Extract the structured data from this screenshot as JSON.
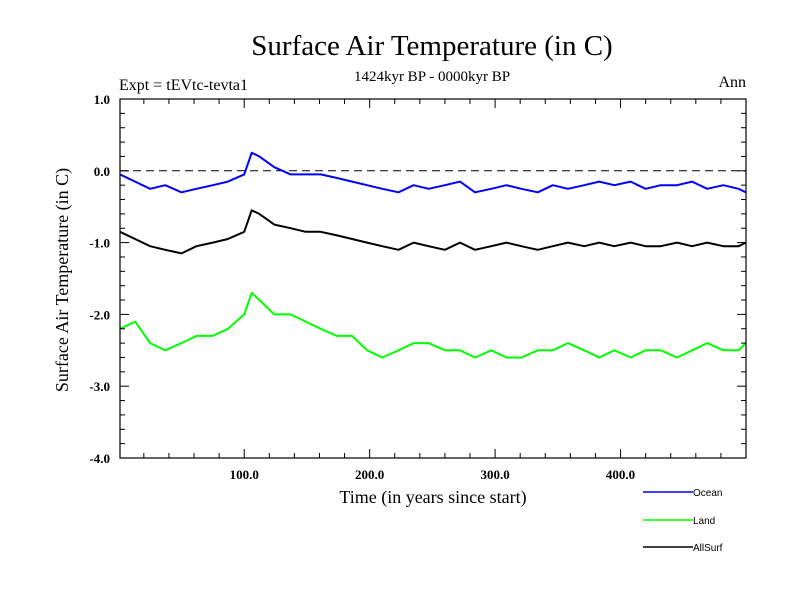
{
  "chart_data": {
    "type": "line",
    "title": "Surface Air Temperature (in C)",
    "subtitle": "1424kyr BP - 0000kyr BP",
    "left_label": "Expt = tEVtc-tevta1",
    "right_label": "Ann",
    "xlabel": "Time (in years since start)",
    "ylabel": "Surface Air Temperature (in C)",
    "xlim": [
      1,
      500
    ],
    "ylim": [
      -4.0,
      1.0
    ],
    "x_ticks": [
      {
        "value": 100,
        "label": "100.0"
      },
      {
        "value": 200,
        "label": "200.0"
      },
      {
        "value": 300,
        "label": "300.0"
      },
      {
        "value": 400,
        "label": "400.0"
      }
    ],
    "y_ticks": [
      {
        "value": 1.0,
        "label": "1.0"
      },
      {
        "value": 0.0,
        "label": "0.0"
      },
      {
        "value": -1.0,
        "label": "-1.0"
      },
      {
        "value": -2.0,
        "label": "-2.0"
      },
      {
        "value": -3.0,
        "label": "-3.0"
      },
      {
        "value": -4.0,
        "label": "-4.0"
      }
    ],
    "zero_line": 0.0,
    "series": [
      {
        "name": "Ocean",
        "color": "#0000ff",
        "x": [
          1,
          13,
          25,
          37,
          50,
          62,
          75,
          87,
          100,
          106,
          112,
          124,
          137,
          149,
          161,
          174,
          186,
          198,
          210,
          223,
          235,
          247,
          260,
          272,
          284,
          297,
          309,
          321,
          334,
          346,
          358,
          371,
          383,
          395,
          408,
          420,
          432,
          445,
          457,
          469,
          482,
          494,
          500
        ],
        "values": [
          -0.05,
          -0.15,
          -0.25,
          -0.2,
          -0.3,
          -0.25,
          -0.2,
          -0.15,
          -0.05,
          0.25,
          0.2,
          0.05,
          -0.05,
          -0.05,
          -0.05,
          -0.1,
          -0.15,
          -0.2,
          -0.25,
          -0.3,
          -0.2,
          -0.25,
          -0.2,
          -0.15,
          -0.3,
          -0.25,
          -0.2,
          -0.25,
          -0.3,
          -0.2,
          -0.25,
          -0.2,
          -0.15,
          -0.2,
          -0.15,
          -0.25,
          -0.2,
          -0.2,
          -0.15,
          -0.25,
          -0.2,
          -0.25,
          -0.3
        ]
      },
      {
        "name": "Land",
        "color": "#00ff00",
        "x": [
          1,
          13,
          25,
          37,
          50,
          62,
          75,
          87,
          100,
          106,
          112,
          124,
          137,
          149,
          161,
          174,
          186,
          198,
          210,
          223,
          235,
          247,
          260,
          272,
          284,
          297,
          309,
          321,
          334,
          346,
          358,
          371,
          383,
          395,
          408,
          420,
          432,
          445,
          457,
          469,
          482,
          494,
          500
        ],
        "values": [
          -2.2,
          -2.1,
          -2.4,
          -2.5,
          -2.4,
          -2.3,
          -2.3,
          -2.2,
          -2.0,
          -1.7,
          -1.8,
          -2.0,
          -2.0,
          -2.1,
          -2.2,
          -2.3,
          -2.3,
          -2.5,
          -2.6,
          -2.5,
          -2.4,
          -2.4,
          -2.5,
          -2.5,
          -2.6,
          -2.5,
          -2.6,
          -2.6,
          -2.5,
          -2.5,
          -2.4,
          -2.5,
          -2.6,
          -2.5,
          -2.6,
          -2.5,
          -2.5,
          -2.6,
          -2.5,
          -2.4,
          -2.5,
          -2.5,
          -2.4
        ]
      },
      {
        "name": "AllSurf",
        "color": "#000000",
        "x": [
          1,
          13,
          25,
          37,
          50,
          62,
          75,
          87,
          100,
          106,
          112,
          124,
          137,
          149,
          161,
          174,
          186,
          198,
          210,
          223,
          235,
          247,
          260,
          272,
          284,
          297,
          309,
          321,
          334,
          346,
          358,
          371,
          383,
          395,
          408,
          420,
          432,
          445,
          457,
          469,
          482,
          494,
          500
        ],
        "values": [
          -0.85,
          -0.95,
          -1.05,
          -1.1,
          -1.15,
          -1.05,
          -1.0,
          -0.95,
          -0.85,
          -0.55,
          -0.6,
          -0.75,
          -0.8,
          -0.85,
          -0.85,
          -0.9,
          -0.95,
          -1.0,
          -1.05,
          -1.1,
          -1.0,
          -1.05,
          -1.1,
          -1.0,
          -1.1,
          -1.05,
          -1.0,
          -1.05,
          -1.1,
          -1.05,
          -1.0,
          -1.05,
          -1.0,
          -1.05,
          -1.0,
          -1.05,
          -1.05,
          -1.0,
          -1.05,
          -1.0,
          -1.05,
          -1.05,
          -1.0
        ]
      }
    ],
    "legend_placement": "bottom-right"
  }
}
